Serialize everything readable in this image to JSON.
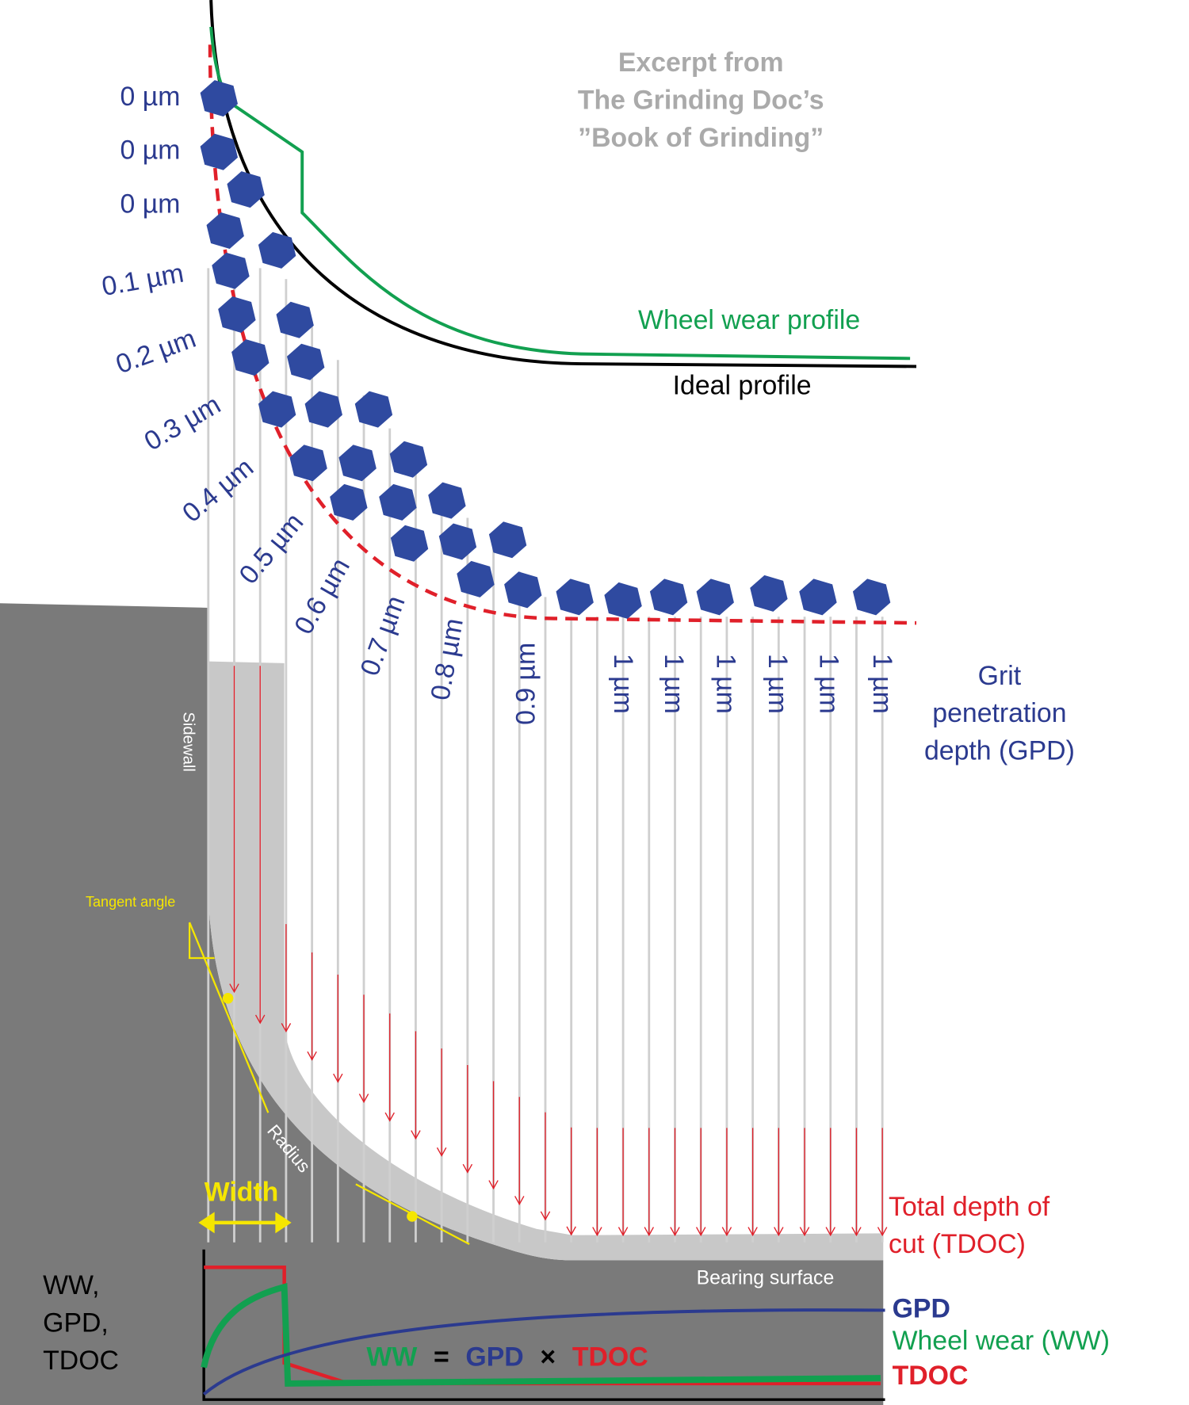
{
  "excerpt": [
    "Excerpt from",
    "The Grinding Doc’s",
    "”Book of Grinding”"
  ],
  "gpd_labels": [
    "0 µm",
    "0 µm",
    "0 µm",
    "0.1 µm",
    "0.2 µm",
    "0.3 µm",
    "0.4 µm",
    "0.5 µm",
    "0.6 µm",
    "0.7 µm",
    "0.8 µm",
    "0.9 µm",
    "1 µm",
    "1 µm",
    "1 µm",
    "1 µm",
    "1 µm",
    "1 µm"
  ],
  "wheel_wear_profile": "Wheel wear profile",
  "ideal_profile": "Ideal profile",
  "gpd_title": [
    "Grit",
    "penetration",
    "depth (GPD)"
  ],
  "sidewall": "Sidewall",
  "tangent_angle": "Tangent angle",
  "radius": "Radius",
  "width": "Width",
  "tdoc_title": [
    "Total depth of",
    "cut (TDOC)"
  ],
  "bearing_surface": "Bearing surface",
  "plot": {
    "y_label": [
      "WW,",
      "GPD,",
      "TDOC"
    ],
    "legend": [
      "GPD",
      "Wheel wear (WW)",
      "TDOC"
    ],
    "equation": [
      "WW",
      "=",
      "GPD",
      "×",
      "TDOC"
    ]
  }
}
